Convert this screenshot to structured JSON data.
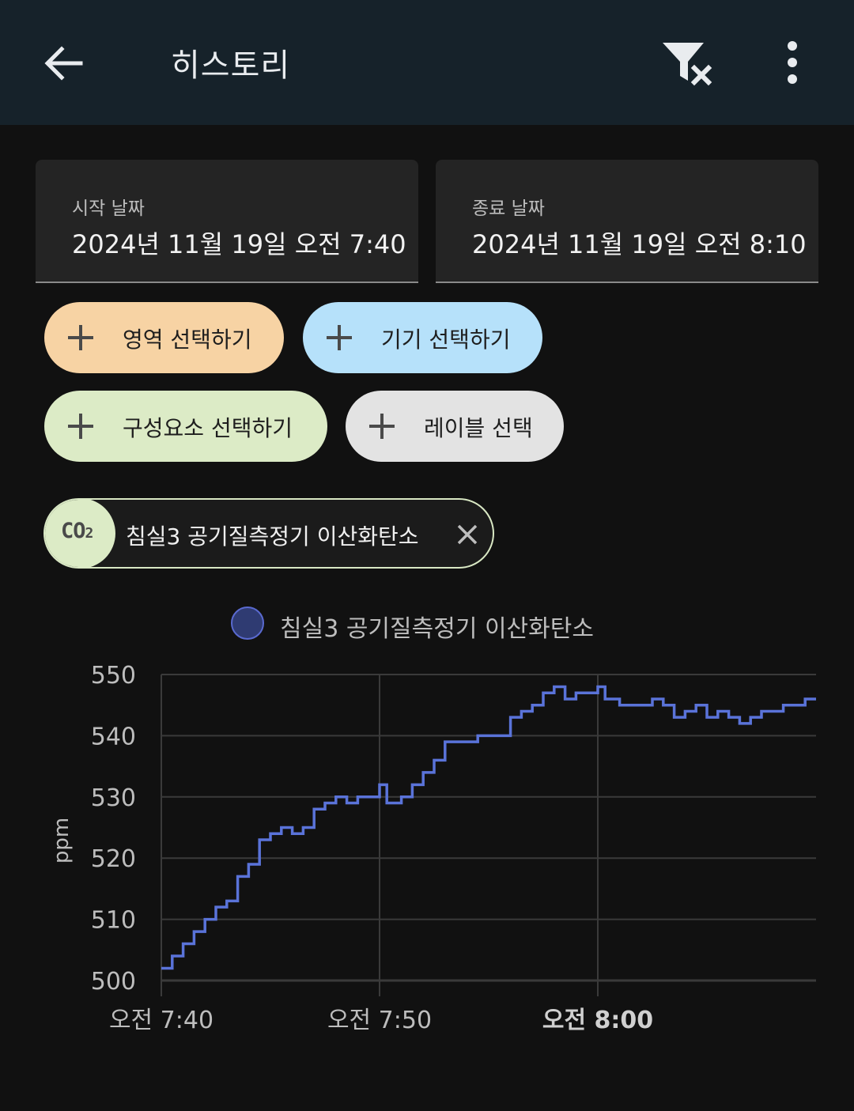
{
  "app_bar": {
    "title": "히스토리",
    "back_icon": "arrow-left-icon",
    "filter_icon": "filter-remove-icon",
    "more_icon": "more-vert-icon"
  },
  "date_range": {
    "start_label": "시작 날짜",
    "start_value": "2024년 11월 19일 오전 7:40",
    "end_label": "종료 날짜",
    "end_value": "2024년 11월 19일 오전 8:10"
  },
  "filter_chips": [
    {
      "label": "영역 선택하기",
      "color": "#f7d3a4"
    },
    {
      "label": "기기 선택하기",
      "color": "#b6e1fa"
    },
    {
      "label": "구성요소 선택하기",
      "color": "#dcebc6"
    },
    {
      "label": "레이블 선택",
      "color": "#e3e3e3"
    }
  ],
  "selected_entity": {
    "badge": "CO",
    "badge_sub": "2",
    "name": "침실3 공기질측정기 이산화탄소"
  },
  "colors": {
    "line": "#5a73d9",
    "grid": "#3a3a3a",
    "background": "#111111",
    "app_bar": "#16222a"
  },
  "chart_data": {
    "type": "line",
    "step": true,
    "legend": "침실3 공기질측정기 이산화탄소",
    "legend_position": "top-center",
    "ylabel": "ppm",
    "ylim": [
      500,
      550
    ],
    "yticks": [
      500,
      510,
      520,
      530,
      540,
      550
    ],
    "xlim": [
      "07:40",
      "08:10"
    ],
    "xticks": [
      {
        "time": "07:40",
        "label": "오전 7:40",
        "bold": false
      },
      {
        "time": "07:50",
        "label": "오전 7:50",
        "bold": false
      },
      {
        "time": "08:00",
        "label": "오전 8:00",
        "bold": true
      }
    ],
    "grid": true,
    "series": [
      {
        "name": "침실3 공기질측정기 이산화탄소",
        "points": [
          [
            "07:40:00",
            502
          ],
          [
            "07:40:30",
            504
          ],
          [
            "07:41:00",
            506
          ],
          [
            "07:41:30",
            508
          ],
          [
            "07:42:00",
            510
          ],
          [
            "07:42:30",
            512
          ],
          [
            "07:43:00",
            513
          ],
          [
            "07:43:30",
            517
          ],
          [
            "07:44:00",
            519
          ],
          [
            "07:44:30",
            523
          ],
          [
            "07:45:00",
            524
          ],
          [
            "07:45:30",
            525
          ],
          [
            "07:46:00",
            524
          ],
          [
            "07:46:30",
            525
          ],
          [
            "07:47:00",
            528
          ],
          [
            "07:47:30",
            529
          ],
          [
            "07:48:00",
            530
          ],
          [
            "07:48:30",
            529
          ],
          [
            "07:49:00",
            530
          ],
          [
            "07:50:00",
            532
          ],
          [
            "07:50:20",
            529
          ],
          [
            "07:51:00",
            530
          ],
          [
            "07:51:30",
            532
          ],
          [
            "07:52:00",
            534
          ],
          [
            "07:52:30",
            536
          ],
          [
            "07:53:00",
            539
          ],
          [
            "07:54:30",
            540
          ],
          [
            "07:56:00",
            543
          ],
          [
            "07:56:30",
            544
          ],
          [
            "07:57:00",
            545
          ],
          [
            "07:57:30",
            547
          ],
          [
            "07:58:00",
            548
          ],
          [
            "07:58:30",
            546
          ],
          [
            "07:59:00",
            547
          ],
          [
            "08:00:00",
            548
          ],
          [
            "08:00:20",
            546
          ],
          [
            "08:01:00",
            545
          ],
          [
            "08:02:30",
            546
          ],
          [
            "08:03:00",
            545
          ],
          [
            "08:03:30",
            543
          ],
          [
            "08:04:00",
            544
          ],
          [
            "08:04:30",
            545
          ],
          [
            "08:05:00",
            543
          ],
          [
            "08:05:30",
            544
          ],
          [
            "08:06:00",
            543
          ],
          [
            "08:06:30",
            542
          ],
          [
            "08:07:00",
            543
          ],
          [
            "08:07:30",
            544
          ],
          [
            "08:08:30",
            545
          ],
          [
            "08:09:30",
            546
          ],
          [
            "08:10:00",
            546
          ]
        ]
      }
    ]
  }
}
